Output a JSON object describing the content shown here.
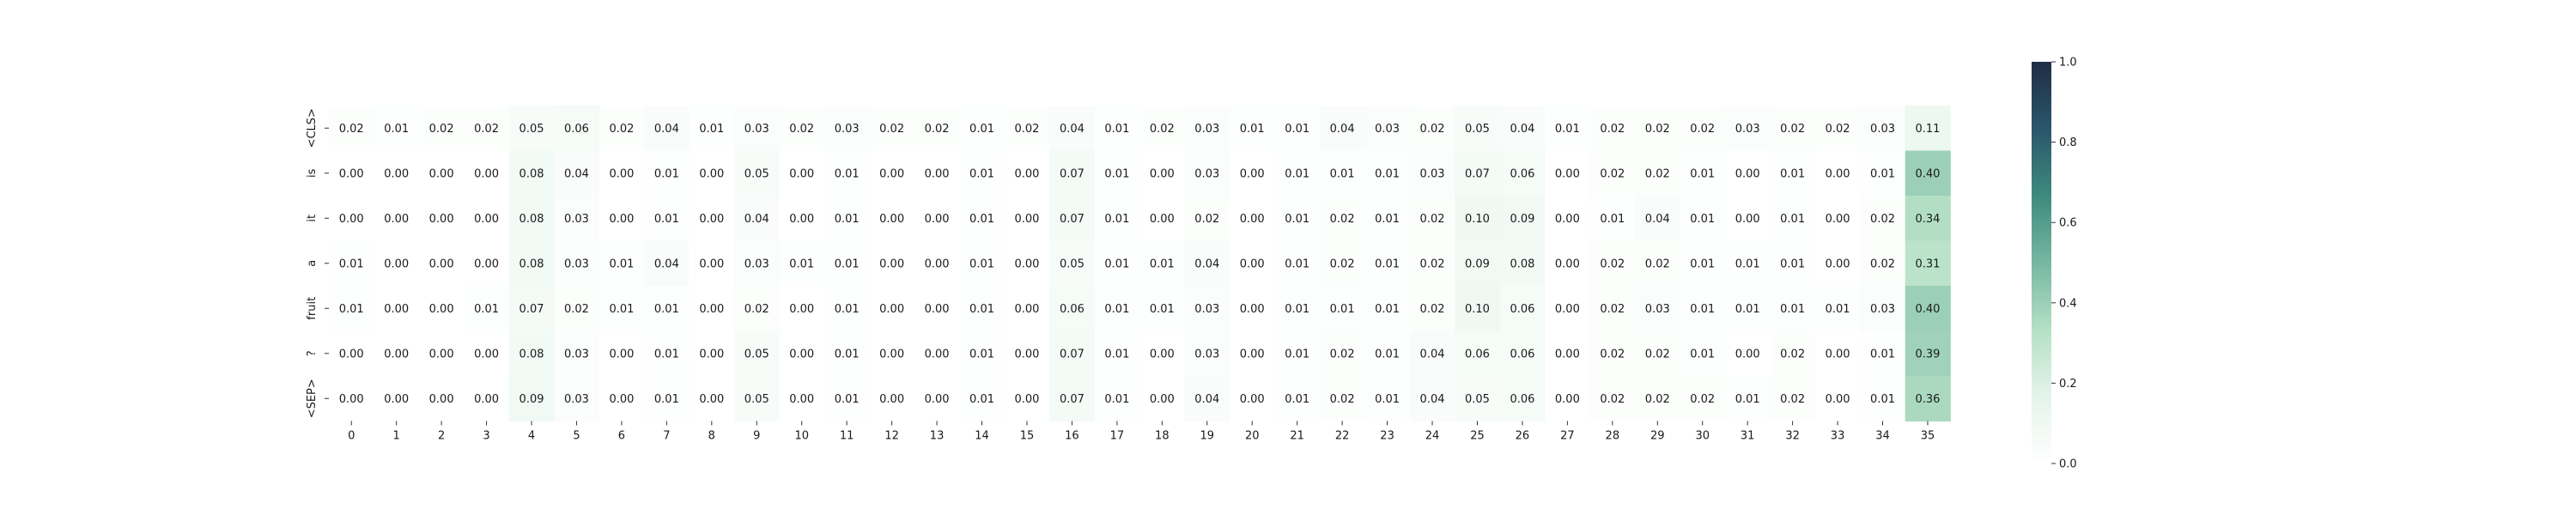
{
  "chart_data": {
    "type": "heatmap",
    "title": "",
    "xlabel": "",
    "ylabel": "",
    "x_labels": [
      "0",
      "1",
      "2",
      "3",
      "4",
      "5",
      "6",
      "7",
      "8",
      "9",
      "10",
      "11",
      "12",
      "13",
      "14",
      "15",
      "16",
      "17",
      "18",
      "19",
      "20",
      "21",
      "22",
      "23",
      "24",
      "25",
      "26",
      "27",
      "28",
      "29",
      "30",
      "31",
      "32",
      "33",
      "34",
      "35"
    ],
    "y_labels": [
      "<CLS>",
      "is",
      "it",
      "a",
      "fruit",
      "?",
      "<SEP>"
    ],
    "values": [
      [
        0.02,
        0.01,
        0.02,
        0.02,
        0.05,
        0.06,
        0.02,
        0.04,
        0.01,
        0.03,
        0.02,
        0.03,
        0.02,
        0.02,
        0.01,
        0.02,
        0.04,
        0.01,
        0.02,
        0.03,
        0.01,
        0.01,
        0.04,
        0.03,
        0.02,
        0.05,
        0.04,
        0.01,
        0.02,
        0.02,
        0.02,
        0.03,
        0.02,
        0.02,
        0.03,
        0.11
      ],
      [
        0.0,
        0.0,
        0.0,
        0.0,
        0.08,
        0.04,
        0.0,
        0.01,
        0.0,
        0.05,
        0.0,
        0.01,
        0.0,
        0.0,
        0.01,
        0.0,
        0.07,
        0.01,
        0.0,
        0.03,
        0.0,
        0.01,
        0.01,
        0.01,
        0.03,
        0.07,
        0.06,
        0.0,
        0.02,
        0.02,
        0.01,
        0.0,
        0.01,
        0.0,
        0.01,
        0.4
      ],
      [
        0.0,
        0.0,
        0.0,
        0.0,
        0.08,
        0.03,
        0.0,
        0.01,
        0.0,
        0.04,
        0.0,
        0.01,
        0.0,
        0.0,
        0.01,
        0.0,
        0.07,
        0.01,
        0.0,
        0.02,
        0.0,
        0.01,
        0.02,
        0.01,
        0.02,
        0.1,
        0.09,
        0.0,
        0.01,
        0.04,
        0.01,
        0.0,
        0.01,
        0.0,
        0.02,
        0.34
      ],
      [
        0.01,
        0.0,
        0.0,
        0.0,
        0.08,
        0.03,
        0.01,
        0.04,
        0.0,
        0.03,
        0.01,
        0.01,
        0.0,
        0.0,
        0.01,
        0.0,
        0.05,
        0.01,
        0.01,
        0.04,
        0.0,
        0.01,
        0.02,
        0.01,
        0.02,
        0.09,
        0.08,
        0.0,
        0.02,
        0.02,
        0.01,
        0.01,
        0.01,
        0.0,
        0.02,
        0.31
      ],
      [
        0.01,
        0.0,
        0.0,
        0.01,
        0.07,
        0.02,
        0.01,
        0.01,
        0.0,
        0.02,
        0.0,
        0.01,
        0.0,
        0.0,
        0.01,
        0.0,
        0.06,
        0.01,
        0.01,
        0.03,
        0.0,
        0.01,
        0.01,
        0.01,
        0.02,
        0.1,
        0.06,
        0.0,
        0.02,
        0.03,
        0.01,
        0.01,
        0.01,
        0.01,
        0.03,
        0.4
      ],
      [
        0.0,
        0.0,
        0.0,
        0.0,
        0.08,
        0.03,
        0.0,
        0.01,
        0.0,
        0.05,
        0.0,
        0.01,
        0.0,
        0.0,
        0.01,
        0.0,
        0.07,
        0.01,
        0.0,
        0.03,
        0.0,
        0.01,
        0.02,
        0.01,
        0.04,
        0.06,
        0.06,
        0.0,
        0.02,
        0.02,
        0.01,
        0.0,
        0.02,
        0.0,
        0.01,
        0.39
      ],
      [
        0.0,
        0.0,
        0.0,
        0.0,
        0.09,
        0.03,
        0.0,
        0.01,
        0.0,
        0.05,
        0.0,
        0.01,
        0.0,
        0.0,
        0.01,
        0.0,
        0.07,
        0.01,
        0.0,
        0.04,
        0.0,
        0.01,
        0.02,
        0.01,
        0.04,
        0.05,
        0.06,
        0.0,
        0.02,
        0.02,
        0.02,
        0.01,
        0.02,
        0.0,
        0.01,
        0.36
      ]
    ],
    "value_range": [
      0.0,
      1.0
    ],
    "colorbar": {
      "ticks": [
        0.0,
        0.2,
        0.4,
        0.6,
        0.8,
        1.0
      ],
      "tick_labels": [
        "0.0",
        "0.2",
        "0.4",
        "0.6",
        "0.8",
        "1.0"
      ],
      "colormap_stops": [
        "#ffffff",
        "#e4f4ea",
        "#b4e0c5",
        "#76b7a2",
        "#3e8a7d",
        "#2b566c",
        "#1f2d45"
      ]
    },
    "annotations": true,
    "grid": false,
    "legend": "colorbar-right"
  }
}
